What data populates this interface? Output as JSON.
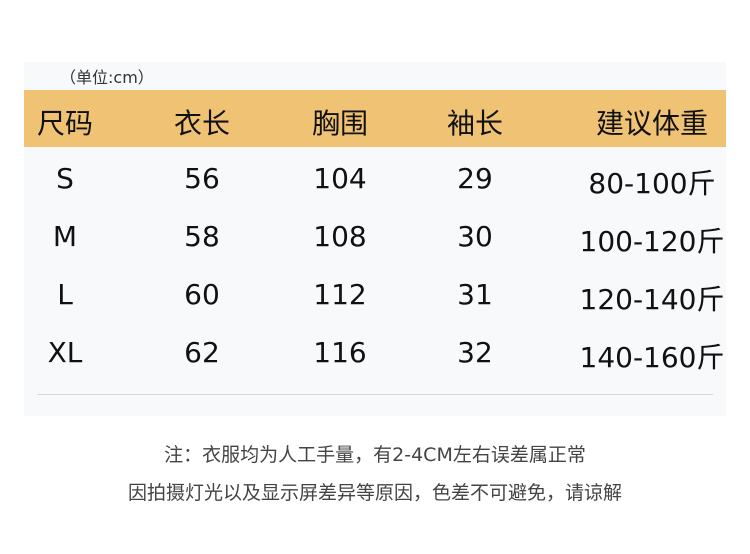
{
  "unit_label": "（单位:cm）",
  "header_color": "#f0c274",
  "columns": [
    "尺码",
    "衣长",
    "胸围",
    "袖长",
    "建议体重"
  ],
  "rows": [
    [
      "S",
      "56",
      "104",
      "29",
      "80-100斤"
    ],
    [
      "M",
      "58",
      "108",
      "30",
      "100-120斤"
    ],
    [
      "L",
      "60",
      "112",
      "31",
      "120-140斤"
    ],
    [
      "XL",
      "62",
      "116",
      "32",
      "140-160斤"
    ]
  ],
  "notes": [
    "注：衣服均为人工手量，有2-4CM左右误差属正常",
    "因拍摄灯光以及显示屏差异等原因，色差不可避免，请谅解"
  ]
}
